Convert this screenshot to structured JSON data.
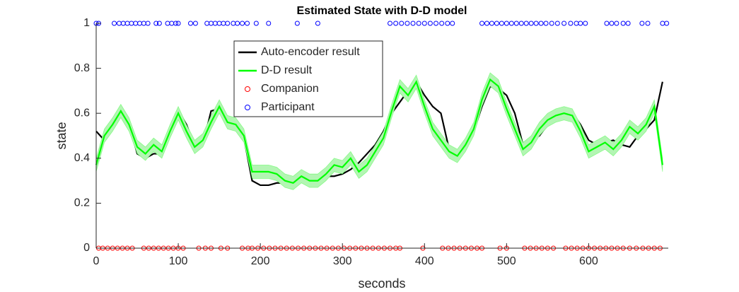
{
  "chart_data": {
    "type": "line",
    "title": "Estimated State with D-D model",
    "xlabel": "seconds",
    "ylabel": "state",
    "xlim": [
      0,
      697
    ],
    "ylim": [
      0,
      1
    ],
    "xticks": [
      0,
      100,
      200,
      300,
      400,
      500,
      600
    ],
    "yticks": [
      0,
      0.2,
      0.4,
      0.6,
      0.8,
      1
    ],
    "legend": "upper-left-inner",
    "x": [
      0,
      10,
      20,
      30,
      40,
      50,
      60,
      70,
      80,
      90,
      100,
      110,
      120,
      130,
      140,
      150,
      160,
      170,
      180,
      190,
      200,
      210,
      220,
      230,
      240,
      250,
      260,
      270,
      280,
      290,
      300,
      310,
      320,
      330,
      340,
      350,
      360,
      370,
      380,
      390,
      400,
      410,
      420,
      430,
      440,
      450,
      460,
      470,
      480,
      490,
      500,
      510,
      520,
      530,
      540,
      550,
      560,
      570,
      580,
      590,
      600,
      610,
      620,
      630,
      640,
      650,
      660,
      670,
      680,
      690
    ],
    "series": [
      {
        "name": "Auto-encoder result",
        "type": "line",
        "color": "#000000",
        "values": [
          0.52,
          0.48,
          0.53,
          0.61,
          0.56,
          0.42,
          0.4,
          0.42,
          0.42,
          0.52,
          0.61,
          0.55,
          0.45,
          0.46,
          0.61,
          0.62,
          0.56,
          0.53,
          0.49,
          0.3,
          0.28,
          0.28,
          0.29,
          0.29,
          0.29,
          0.3,
          0.31,
          0.31,
          0.32,
          0.32,
          0.33,
          0.35,
          0.38,
          0.42,
          0.46,
          0.52,
          0.6,
          0.65,
          0.7,
          0.74,
          0.68,
          0.63,
          0.6,
          0.44,
          0.41,
          0.45,
          0.52,
          0.63,
          0.72,
          0.71,
          0.68,
          0.6,
          0.46,
          0.48,
          0.5,
          0.55,
          0.6,
          0.62,
          0.6,
          0.55,
          0.48,
          0.46,
          0.47,
          0.48,
          0.46,
          0.45,
          0.5,
          0.53,
          0.57,
          0.74
        ]
      },
      {
        "name": "D-D result",
        "type": "line",
        "color": "#00ff00",
        "band": 0.03,
        "band_color": "#b3f5b3",
        "values": [
          0.37,
          0.5,
          0.55,
          0.61,
          0.55,
          0.45,
          0.42,
          0.46,
          0.43,
          0.52,
          0.6,
          0.52,
          0.45,
          0.48,
          0.56,
          0.63,
          0.56,
          0.55,
          0.5,
          0.34,
          0.34,
          0.34,
          0.33,
          0.3,
          0.29,
          0.32,
          0.3,
          0.3,
          0.33,
          0.37,
          0.36,
          0.4,
          0.34,
          0.37,
          0.43,
          0.49,
          0.61,
          0.72,
          0.68,
          0.74,
          0.63,
          0.53,
          0.48,
          0.43,
          0.41,
          0.46,
          0.53,
          0.66,
          0.75,
          0.72,
          0.62,
          0.53,
          0.44,
          0.47,
          0.53,
          0.57,
          0.59,
          0.6,
          0.59,
          0.52,
          0.43,
          0.45,
          0.47,
          0.44,
          0.48,
          0.54,
          0.51,
          0.55,
          0.63,
          0.37
        ]
      },
      {
        "name": "Companion",
        "type": "scatter",
        "color": "#ff0000",
        "x": [
          3,
          8,
          14,
          20,
          26,
          32,
          38,
          44,
          58,
          64,
          70,
          76,
          82,
          88,
          94,
          100,
          106,
          125,
          133,
          140,
          152,
          160,
          178,
          185,
          190,
          197,
          204,
          211,
          218,
          225,
          232,
          239,
          246,
          253,
          260,
          267,
          274,
          281,
          288,
          295,
          302,
          309,
          316,
          323,
          330,
          337,
          344,
          351,
          358,
          365,
          370,
          398,
          422,
          429,
          436,
          443,
          450,
          457,
          464,
          470,
          492,
          500,
          522,
          529,
          536,
          543,
          550,
          557,
          572,
          579,
          586,
          593,
          600,
          607,
          614,
          621,
          628,
          635,
          642,
          650,
          658,
          666,
          673,
          680,
          687
        ],
        "values": [
          0,
          0,
          0,
          0,
          0,
          0,
          0,
          0,
          0,
          0,
          0,
          0,
          0,
          0,
          0,
          0,
          0,
          0,
          0,
          0,
          0,
          0,
          0,
          0,
          0,
          0,
          0,
          0,
          0,
          0,
          0,
          0,
          0,
          0,
          0,
          0,
          0,
          0,
          0,
          0,
          0,
          0,
          0,
          0,
          0,
          0,
          0,
          0,
          0,
          0,
          0,
          0,
          0,
          0,
          0,
          0,
          0,
          0,
          0,
          0,
          0,
          0,
          0,
          0,
          0,
          0,
          0,
          0,
          0,
          0,
          0,
          0,
          0,
          0,
          0,
          0,
          0,
          0,
          0,
          0,
          0,
          0,
          0,
          0,
          0
        ]
      },
      {
        "name": "Participant",
        "type": "scatter",
        "color": "#0000ff",
        "x": [
          0,
          3,
          22,
          28,
          33,
          38,
          43,
          48,
          53,
          58,
          63,
          73,
          77,
          87,
          92,
          97,
          100,
          115,
          121,
          135,
          140,
          145,
          150,
          155,
          160,
          167,
          172,
          178,
          184,
          195,
          210,
          245,
          270,
          358,
          365,
          372,
          379,
          386,
          393,
          400,
          407,
          414,
          421,
          428,
          434,
          470,
          476,
          482,
          488,
          494,
          500,
          506,
          512,
          518,
          524,
          530,
          536,
          542,
          548,
          555,
          562,
          570,
          578,
          585,
          590,
          596,
          622,
          628,
          634,
          642,
          648,
          665,
          672,
          690,
          695
        ],
        "values": [
          1,
          1,
          1,
          1,
          1,
          1,
          1,
          1,
          1,
          1,
          1,
          1,
          1,
          1,
          1,
          1,
          1,
          1,
          1,
          1,
          1,
          1,
          1,
          1,
          1,
          1,
          1,
          1,
          1,
          1,
          1,
          1,
          1,
          1,
          1,
          1,
          1,
          1,
          1,
          1,
          1,
          1,
          1,
          1,
          1,
          1,
          1,
          1,
          1,
          1,
          1,
          1,
          1,
          1,
          1,
          1,
          1,
          1,
          1,
          1,
          1,
          1,
          1,
          1,
          1,
          1,
          1,
          1,
          1,
          1,
          1,
          1,
          1,
          1,
          1
        ]
      }
    ]
  }
}
